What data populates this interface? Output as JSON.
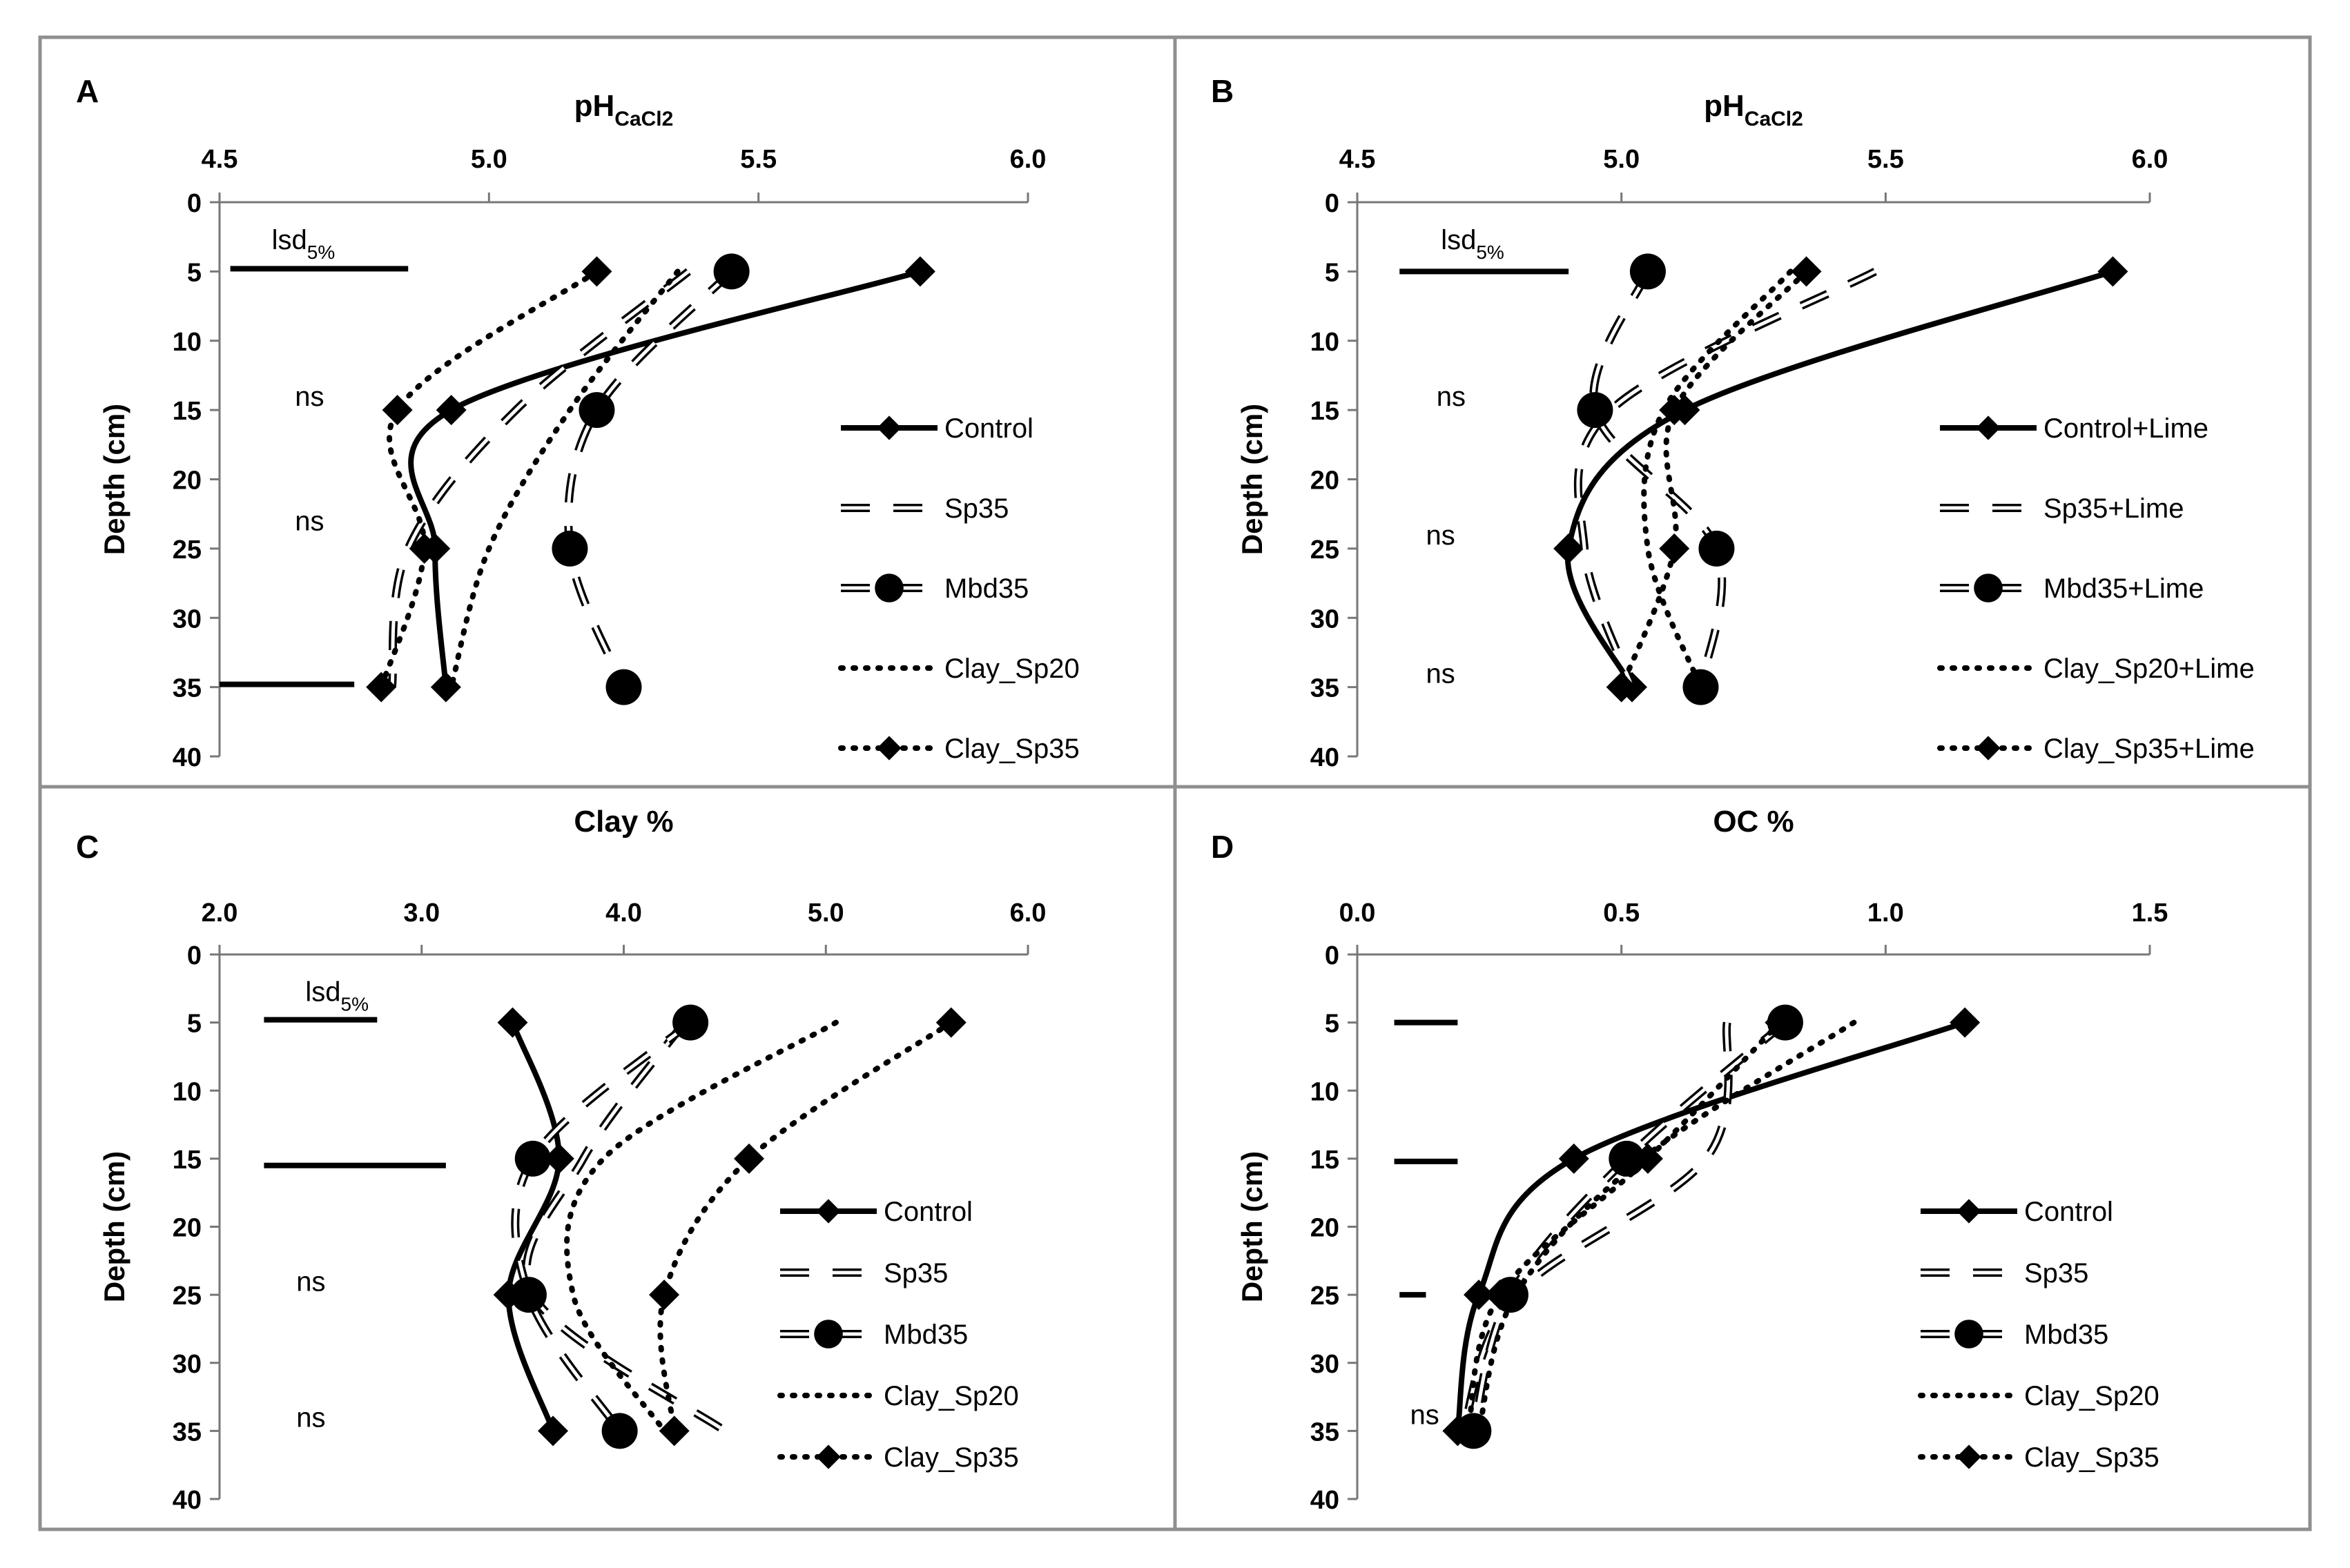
{
  "chart_data": [
    {
      "panel": "A",
      "type": "line",
      "title": "pH",
      "title_sub": "CaCl2",
      "ylabel": "Depth (cm)",
      "xlim": [
        4.5,
        6.0
      ],
      "xticks": [
        "4.5",
        "5.0",
        "5.5",
        "6.0"
      ],
      "ylim": [
        0,
        40
      ],
      "yticks": [
        "0",
        "5",
        "10",
        "15",
        "20",
        "25",
        "30",
        "35",
        "40"
      ],
      "depths": [
        5,
        15,
        25,
        35
      ],
      "series": [
        {
          "name": "Control",
          "style": "solid-diamond",
          "values": [
            5.8,
            4.93,
            4.9,
            4.92
          ]
        },
        {
          "name": "Sp35",
          "style": "dash",
          "values": [
            5.37,
            5.05,
            4.85,
            4.82
          ]
        },
        {
          "name": "Mbd35",
          "style": "dash-circle",
          "values": [
            5.45,
            5.2,
            5.15,
            5.25
          ]
        },
        {
          "name": "Clay_Sp20",
          "style": "dot",
          "values": [
            5.35,
            5.15,
            5.0,
            4.93
          ]
        },
        {
          "name": "Clay_Sp35",
          "style": "dot-diamond",
          "values": [
            5.2,
            4.83,
            4.88,
            4.8
          ]
        }
      ],
      "annotations": [
        {
          "text": "lsd",
          "sub": "5%",
          "depth": 2.7,
          "line": [
            4.52,
            4.85
          ],
          "line_depth": 4.8
        },
        {
          "text": "ns",
          "depth": 14,
          "x": 4.64
        },
        {
          "text": "ns",
          "depth": 23,
          "x": 4.64
        },
        {
          "line": [
            4.5,
            4.75
          ],
          "line_depth": 34.8
        }
      ]
    },
    {
      "panel": "B",
      "type": "line",
      "title": "pH",
      "title_sub": "CaCl2",
      "ylabel": "Depth (cm)",
      "xlim": [
        4.5,
        6.0
      ],
      "xticks": [
        "4.5",
        "5.0",
        "5.5",
        "6.0"
      ],
      "ylim": [
        0,
        40
      ],
      "yticks": [
        "0",
        "5",
        "10",
        "15",
        "20",
        "25",
        "30",
        "35",
        "40"
      ],
      "depths": [
        5,
        15,
        25,
        35
      ],
      "series": [
        {
          "name": "Control+Lime",
          "style": "solid-diamond",
          "values": [
            5.93,
            5.12,
            4.9,
            5.02
          ]
        },
        {
          "name": "Sp35+Lime",
          "style": "dash",
          "values": [
            5.48,
            4.98,
            4.93,
            5.02
          ]
        },
        {
          "name": "Mbd35+Lime",
          "style": "dash-circle",
          "values": [
            5.05,
            4.95,
            5.18,
            5.15
          ]
        },
        {
          "name": "Clay_Sp20+Lime",
          "style": "dot",
          "values": [
            5.32,
            5.08,
            5.05,
            5.15
          ]
        },
        {
          "name": "Clay_Sp35+Lime",
          "style": "dot-diamond",
          "values": [
            5.35,
            5.1,
            5.1,
            5.0
          ]
        }
      ],
      "annotations": [
        {
          "text": "lsd",
          "sub": "5%",
          "depth": 2.7,
          "line": [
            4.58,
            4.9
          ],
          "line_depth": 5.0
        },
        {
          "text": "ns",
          "depth": 14,
          "x": 4.65
        },
        {
          "text": "ns",
          "depth": 24,
          "x": 4.63
        },
        {
          "text": "ns",
          "depth": 34,
          "x": 4.63
        }
      ]
    },
    {
      "panel": "C",
      "type": "line",
      "title": "Clay %",
      "title_sub": "",
      "ylabel": "Depth (cm)",
      "xlim": [
        2.0,
        6.0
      ],
      "xticks": [
        "2.0",
        "3.0",
        "4.0",
        "5.0",
        "6.0"
      ],
      "ylim": [
        0,
        40
      ],
      "yticks": [
        "0",
        "5",
        "10",
        "15",
        "20",
        "25",
        "30",
        "35",
        "40"
      ],
      "depths": [
        5,
        15,
        25,
        35
      ],
      "series": [
        {
          "name": "Control",
          "style": "solid-diamond",
          "values": [
            3.45,
            3.68,
            3.43,
            3.65
          ]
        },
        {
          "name": "Sp35",
          "style": "dash",
          "values": [
            4.3,
            3.8,
            3.55,
            4.5
          ]
        },
        {
          "name": "Mbd35",
          "style": "dash-circle",
          "values": [
            4.33,
            3.55,
            3.53,
            3.98
          ]
        },
        {
          "name": "Clay_Sp20",
          "style": "dot",
          "values": [
            5.05,
            3.9,
            3.75,
            4.2
          ]
        },
        {
          "name": "Clay_Sp35",
          "style": "dot-diamond",
          "values": [
            5.62,
            4.62,
            4.2,
            4.25
          ]
        }
      ],
      "annotations": [
        {
          "text": "lsd",
          "sub": "5%",
          "depth": 2.7,
          "line": [
            2.22,
            2.78
          ],
          "line_depth": 4.8
        },
        {
          "line": [
            2.22,
            3.12
          ],
          "line_depth": 15.5
        },
        {
          "text": "ns",
          "depth": 24,
          "x": 2.38
        },
        {
          "text": "ns",
          "depth": 34,
          "x": 2.38
        }
      ]
    },
    {
      "panel": "D",
      "type": "line",
      "title": "OC %",
      "title_sub": "",
      "ylabel": "Depth (cm)",
      "xlim": [
        0.0,
        1.5
      ],
      "xticks": [
        "0.0",
        "0.5",
        "1.0",
        "1.5"
      ],
      "ylim": [
        0,
        40
      ],
      "yticks": [
        "0",
        "5",
        "10",
        "15",
        "20",
        "25",
        "30",
        "35",
        "40"
      ],
      "depths": [
        5,
        15,
        25,
        35
      ],
      "series": [
        {
          "name": "Control",
          "style": "solid-diamond",
          "values": [
            1.15,
            0.41,
            0.23,
            0.19
          ]
        },
        {
          "name": "Sp35",
          "style": "dash",
          "values": [
            0.7,
            0.66,
            0.3,
            0.2
          ]
        },
        {
          "name": "Mbd35",
          "style": "dash-circle",
          "values": [
            0.81,
            0.51,
            0.29,
            0.22
          ]
        },
        {
          "name": "Clay_Sp20",
          "style": "dot",
          "values": [
            0.94,
            0.54,
            0.3,
            0.23
          ]
        },
        {
          "name": "Clay_Sp35",
          "style": "dot-diamond",
          "values": [
            0.8,
            0.55,
            0.27,
            0.21
          ]
        }
      ],
      "annotations": [
        {
          "line": [
            0.07,
            0.19
          ],
          "line_depth": 5.0
        },
        {
          "line": [
            0.07,
            0.19
          ],
          "line_depth": 15.2
        },
        {
          "line": [
            0.08,
            0.13
          ],
          "line_depth": 25.0
        },
        {
          "text": "ns",
          "depth": 33.8,
          "x": 0.1
        }
      ]
    }
  ]
}
